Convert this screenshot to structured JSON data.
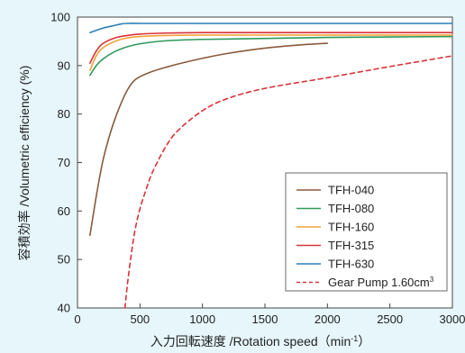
{
  "chart_data": {
    "type": "line",
    "title": "",
    "xlabel": "入力回転速度 /Rotation speed（min-1）",
    "xlabel_parts": {
      "main": "入力回転速度 /Rotation speed（min",
      "sup": "-1",
      "close": "）"
    },
    "ylabel": "容積効率 /Volumetric efficiency  (%)",
    "xlim": [
      0,
      3000
    ],
    "ylim": [
      40,
      100
    ],
    "xticks": [
      0,
      500,
      1000,
      1500,
      2000,
      2500,
      3000
    ],
    "yticks": [
      40,
      50,
      60,
      70,
      80,
      90,
      100
    ],
    "grid": false,
    "legend_position": "bottom-right",
    "series": [
      {
        "name": "TFH-040",
        "color": "#8a5a3c",
        "dash": "solid",
        "x": [
          100,
          150,
          200,
          250,
          300,
          350,
          400,
          450,
          500,
          600,
          700,
          800,
          1000,
          1200,
          1500,
          1800,
          2000
        ],
        "y": [
          55,
          63,
          70,
          75,
          79,
          82.3,
          85,
          86.8,
          87.7,
          88.8,
          89.6,
          90.3,
          91.5,
          92.5,
          93.6,
          94.3,
          94.6
        ]
      },
      {
        "name": "TFH-080",
        "color": "#2e9a5a",
        "dash": "solid",
        "x": [
          100,
          150,
          200,
          300,
          400,
          500,
          700,
          1000,
          1500,
          2000,
          2500,
          3000
        ],
        "y": [
          88,
          90,
          91.3,
          92.9,
          93.9,
          94.5,
          95.1,
          95.4,
          95.6,
          95.8,
          95.9,
          96.0
        ]
      },
      {
        "name": "TFH-160",
        "color": "#f2a23a",
        "dash": "solid",
        "x": [
          100,
          150,
          200,
          300,
          400,
          500,
          700,
          1000,
          1500,
          2000,
          3000
        ],
        "y": [
          89,
          92,
          93.6,
          95,
          95.7,
          96.0,
          96.2,
          96.3,
          96.3,
          96.3,
          96.3
        ]
      },
      {
        "name": "TFH-315",
        "color": "#d9333b",
        "dash": "solid",
        "x": [
          100,
          150,
          200,
          300,
          400,
          500,
          700,
          1000,
          1500,
          2000,
          3000
        ],
        "y": [
          90.5,
          93,
          94.5,
          95.7,
          96.2,
          96.5,
          96.7,
          96.8,
          96.8,
          96.8,
          96.8
        ]
      },
      {
        "name": "TFH-630",
        "color": "#2a7fb8",
        "dash": "solid",
        "x": [
          100,
          200,
          300,
          350,
          400,
          500,
          700,
          1000,
          2000,
          3000
        ],
        "y": [
          96.8,
          97.7,
          98.3,
          98.6,
          98.7,
          98.7,
          98.7,
          98.7,
          98.7,
          98.7
        ]
      },
      {
        "name": "Gear Pump 1.60cm3",
        "color": "#d9333b",
        "dash": "dashed",
        "x": [
          380,
          400,
          430,
          460,
          500,
          550,
          600,
          700,
          800,
          1000,
          1200,
          1500,
          2000,
          2500,
          3000
        ],
        "y": [
          40,
          45,
          51,
          56,
          60.5,
          64.5,
          68,
          73,
          76.5,
          80.7,
          83.2,
          85.3,
          87.5,
          89.8,
          92
        ]
      }
    ],
    "legend_labels": [
      {
        "main": "TFH-040",
        "sup": ""
      },
      {
        "main": "TFH-080",
        "sup": ""
      },
      {
        "main": "TFH-160",
        "sup": ""
      },
      {
        "main": "TFH-315",
        "sup": ""
      },
      {
        "main": "TFH-630",
        "sup": ""
      },
      {
        "main": "Gear Pump 1.60cm",
        "sup": "3"
      }
    ]
  }
}
